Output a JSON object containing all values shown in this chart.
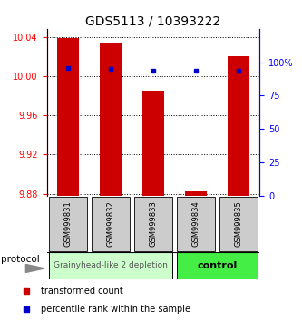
{
  "title": "GDS5113 / 10393222",
  "samples": [
    "GSM999831",
    "GSM999832",
    "GSM999833",
    "GSM999834",
    "GSM999835"
  ],
  "bar_values": [
    10.039,
    10.034,
    9.985,
    9.883,
    10.02
  ],
  "bar_bottom": 9.878,
  "percentile_values": [
    96,
    95,
    94,
    94,
    94
  ],
  "ylim_left": [
    9.878,
    10.048
  ],
  "ylim_right": [
    0,
    125
  ],
  "yticks_left": [
    9.88,
    9.92,
    9.96,
    10.0,
    10.04
  ],
  "yticks_right": [
    0,
    25,
    50,
    75,
    100
  ],
  "ytick_right_labels": [
    "0",
    "25",
    "50",
    "75",
    "100%"
  ],
  "bar_color": "#cc0000",
  "blue_color": "#0000cc",
  "group1_samples": [
    0,
    1,
    2
  ],
  "group2_samples": [
    3,
    4
  ],
  "group1_label": "Grainyhead-like 2 depletion",
  "group2_label": "control",
  "group1_color": "#ccffcc",
  "group2_color": "#44ee44",
  "protocol_label": "protocol",
  "legend1_label": "transformed count",
  "legend2_label": "percentile rank within the sample",
  "bar_width": 0.5,
  "title_fontsize": 10,
  "tick_fontsize": 7,
  "sample_fontsize": 6,
  "group_fontsize": 6.5,
  "legend_fontsize": 7
}
